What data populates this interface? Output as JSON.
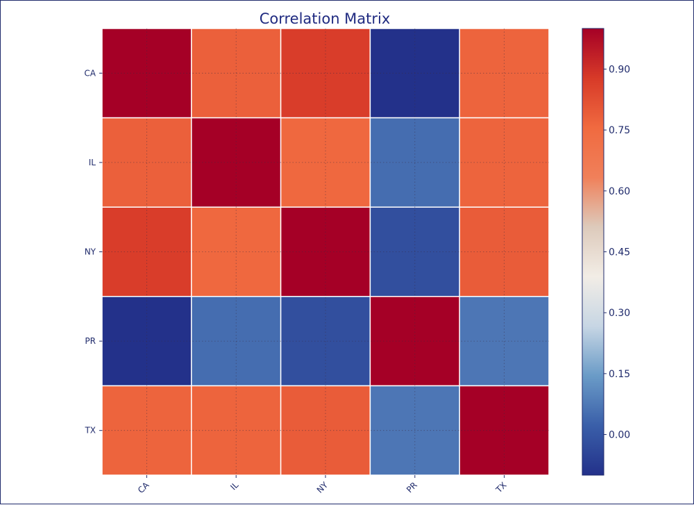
{
  "chart_data": {
    "type": "heatmap",
    "title": "Correlation Matrix",
    "xlabel": "",
    "ylabel": "",
    "x_categories": [
      "CA",
      "IL",
      "NY",
      "PR",
      "TX"
    ],
    "y_categories": [
      "CA",
      "IL",
      "NY",
      "PR",
      "TX"
    ],
    "values": [
      [
        1.0,
        0.78,
        0.87,
        -0.1,
        0.77
      ],
      [
        0.78,
        1.0,
        0.76,
        0.05,
        0.77
      ],
      [
        0.87,
        0.76,
        1.0,
        -0.02,
        0.79
      ],
      [
        -0.1,
        0.05,
        -0.02,
        1.0,
        0.07
      ],
      [
        0.77,
        0.77,
        0.79,
        0.07,
        1.0
      ]
    ],
    "colorbar": {
      "min": -0.1,
      "max": 1.0,
      "ticks": [
        0.0,
        0.15,
        0.3,
        0.45,
        0.6,
        0.75,
        0.9
      ],
      "tick_labels": [
        "0.00",
        "0.15",
        "0.30",
        "0.45",
        "0.60",
        "0.75",
        "0.90"
      ]
    },
    "colormap": [
      "#23318a",
      "#3a5fa9",
      "#6a9bc7",
      "#c7d6e4",
      "#f2ede6",
      "#ddcabb",
      "#f0805a",
      "#f06a40",
      "#d73a28",
      "#a50026"
    ],
    "grid": true
  }
}
